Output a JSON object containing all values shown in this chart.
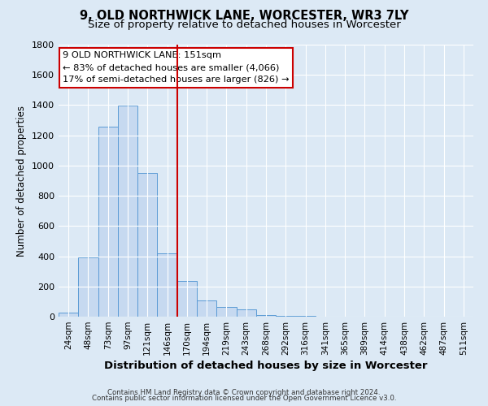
{
  "title": "9, OLD NORTHWICK LANE, WORCESTER, WR3 7LY",
  "subtitle": "Size of property relative to detached houses in Worcester",
  "xlabel": "Distribution of detached houses by size in Worcester",
  "ylabel": "Number of detached properties",
  "bar_labels": [
    "24sqm",
    "48sqm",
    "73sqm",
    "97sqm",
    "121sqm",
    "146sqm",
    "170sqm",
    "194sqm",
    "219sqm",
    "243sqm",
    "268sqm",
    "292sqm",
    "316sqm",
    "341sqm",
    "365sqm",
    "389sqm",
    "414sqm",
    "438sqm",
    "462sqm",
    "487sqm",
    "511sqm"
  ],
  "bar_values": [
    25,
    390,
    1260,
    1395,
    950,
    420,
    235,
    110,
    65,
    48,
    12,
    5,
    5,
    0,
    0,
    0,
    0,
    0,
    0,
    0,
    0
  ],
  "bar_color": "#c6d9f0",
  "bar_edge_color": "#5b9bd5",
  "vline_color": "#cc0000",
  "vline_x_idx": 5,
  "ylim": [
    0,
    1800
  ],
  "yticks": [
    0,
    200,
    400,
    600,
    800,
    1000,
    1200,
    1400,
    1600,
    1800
  ],
  "annotation_title": "9 OLD NORTHWICK LANE: 151sqm",
  "annotation_line1": "← 83% of detached houses are smaller (4,066)",
  "annotation_line2": "17% of semi-detached houses are larger (826) →",
  "annotation_box_facecolor": "#ffffff",
  "annotation_box_edgecolor": "#cc0000",
  "footnote1": "Contains HM Land Registry data © Crown copyright and database right 2024.",
  "footnote2": "Contains public sector information licensed under the Open Government Licence v3.0.",
  "bg_color": "#dce9f5",
  "plot_bg_color": "#dce9f5",
  "title_fontsize": 10.5,
  "subtitle_fontsize": 9.5,
  "ylabel_fontsize": 8.5,
  "xlabel_fontsize": 9.5
}
